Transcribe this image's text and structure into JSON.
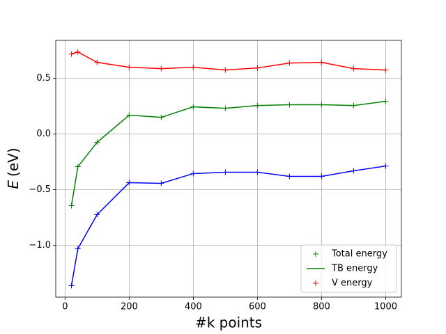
{
  "chart_data": {
    "type": "line",
    "xlabel": "#k points",
    "ylabel": {
      "symbol": "E",
      "unit": "(eV)"
    },
    "x": [
      20,
      40,
      100,
      200,
      300,
      400,
      500,
      600,
      700,
      800,
      900,
      1000
    ],
    "series": [
      {
        "color": "#ff0000",
        "marker": "+",
        "line": true,
        "values": [
          0.719,
          0.738,
          0.644,
          0.6,
          0.588,
          0.6,
          0.575,
          0.594,
          0.638,
          0.644,
          0.588,
          0.575
        ]
      },
      {
        "color": "#008000",
        "marker": "+",
        "line": true,
        "values": [
          -0.644,
          -0.294,
          -0.075,
          0.169,
          0.15,
          0.244,
          0.231,
          0.256,
          0.263,
          0.263,
          0.256,
          0.294
        ]
      },
      {
        "color": "#0000ff",
        "marker": "+",
        "line": true,
        "values": [
          -1.363,
          -1.031,
          -0.725,
          -0.438,
          -0.444,
          -0.356,
          -0.344,
          -0.344,
          -0.381,
          -0.381,
          -0.331,
          -0.288
        ]
      }
    ],
    "xlim": [
      -29,
      1049
    ],
    "ylim": [
      -1.467,
      0.842
    ],
    "xticks": [
      0,
      200,
      400,
      600,
      800,
      1000
    ],
    "yticks": [
      {
        "value": -1.0,
        "label": "−1.0"
      },
      {
        "value": -0.5,
        "label": "−0.5"
      },
      {
        "value": 0.0,
        "label": "0.0"
      },
      {
        "value": 0.5,
        "label": "0.5"
      }
    ],
    "grid": true,
    "legend": {
      "loc": "lower right",
      "entries": [
        {
          "label": "Total energy",
          "color": "#008000",
          "marker": "+"
        },
        {
          "label": "TB energy",
          "color": "#008000",
          "line": true
        },
        {
          "label": "V energy",
          "color": "#ff0000",
          "marker": "+"
        }
      ]
    }
  }
}
